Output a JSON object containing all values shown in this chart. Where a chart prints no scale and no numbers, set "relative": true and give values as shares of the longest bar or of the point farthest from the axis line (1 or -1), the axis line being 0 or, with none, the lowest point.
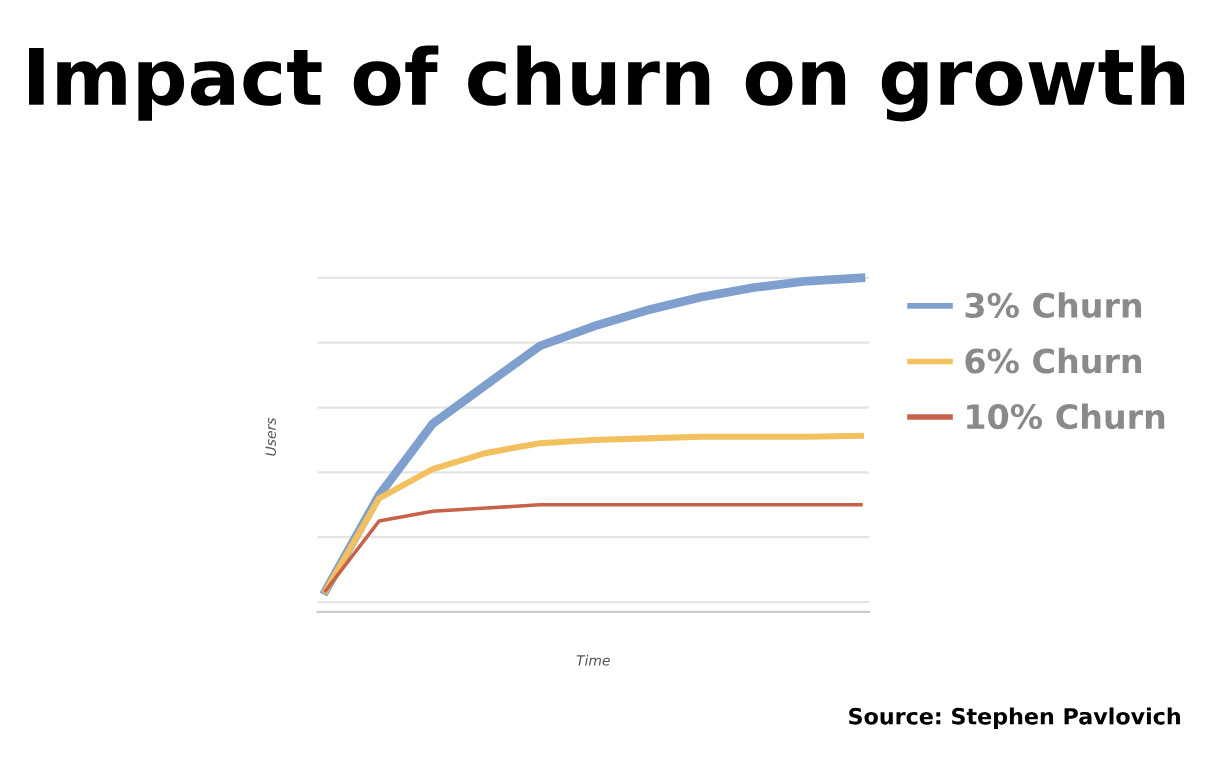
{
  "chart_data": {
    "type": "line",
    "title": "Impact of churn on growth",
    "xlabel": "Time",
    "ylabel": "Users",
    "relative": true,
    "categories": [
      null,
      null,
      null,
      null,
      null,
      null,
      null,
      null,
      null,
      null,
      null
    ],
    "series": [
      {
        "name": "3% Churn",
        "color": "#7f9fcf",
        "values": [
          0.035,
          0.33,
          0.55,
          0.67,
          0.79,
          0.85,
          0.9,
          0.94,
          0.97,
          0.99,
          1
        ]
      },
      {
        "name": "6% Churn",
        "color": "#f2c05e",
        "values": [
          0.035,
          0.32,
          0.41,
          0.46,
          0.49,
          0.5,
          0.505,
          0.51,
          0.51,
          0.51,
          0.513
        ]
      },
      {
        "name": "10% Churn",
        "color": "#c8614a",
        "values": [
          0.035,
          0.25,
          0.28,
          0.29,
          0.3,
          0.3,
          0.3,
          0.3,
          0.3,
          0.3,
          0.3
        ]
      }
    ],
    "grid": "y",
    "legend": "right",
    "marker": "none",
    "line_style": "solid",
    "annotations": [
      "Source: Stephen Pavlovich"
    ]
  }
}
